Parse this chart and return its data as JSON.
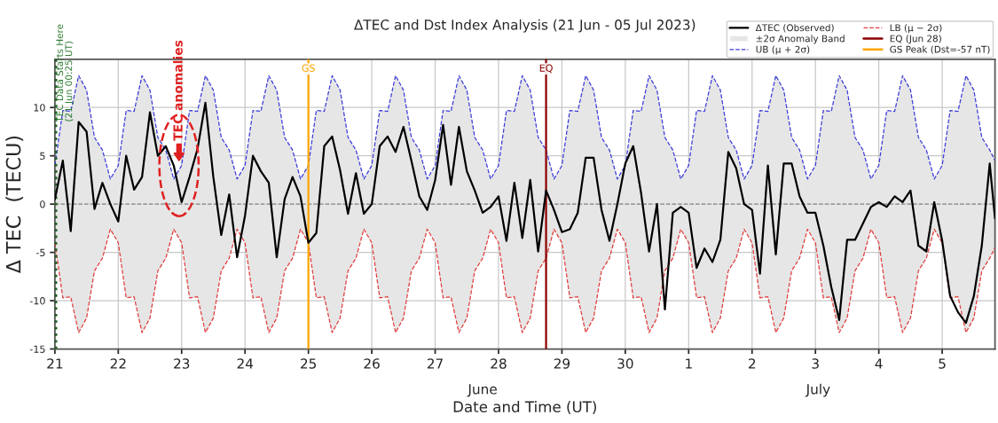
{
  "chart_data": {
    "type": "line",
    "title": "ΔTEC and Dst Index Analysis (21 Jun - 05 Jul 2023)",
    "xlabel": "Date and Time (UT)",
    "ylabel": "Δ TEC  (TECU)",
    "x": [
      "2023-06-21T00:00",
      "2023-06-21T03:00",
      "2023-06-21T06:00",
      "2023-06-21T09:00",
      "2023-06-21T12:00",
      "2023-06-21T15:00",
      "2023-06-21T18:00",
      "2023-06-21T21:00",
      "2023-06-22T00:00",
      "2023-06-22T03:00",
      "2023-06-22T06:00",
      "2023-06-22T09:00",
      "2023-06-22T12:00",
      "2023-06-22T15:00",
      "2023-06-22T18:00",
      "2023-06-22T21:00",
      "2023-06-23T00:00",
      "2023-06-23T03:00",
      "2023-06-23T06:00",
      "2023-06-23T09:00",
      "2023-06-23T12:00",
      "2023-06-23T15:00",
      "2023-06-23T18:00",
      "2023-06-23T21:00",
      "2023-06-24T00:00",
      "2023-06-24T03:00",
      "2023-06-24T06:00",
      "2023-06-24T09:00",
      "2023-06-24T12:00",
      "2023-06-24T15:00",
      "2023-06-24T18:00",
      "2023-06-24T21:00",
      "2023-06-25T00:00",
      "2023-06-25T03:00",
      "2023-06-25T06:00",
      "2023-06-25T09:00",
      "2023-06-25T12:00",
      "2023-06-25T15:00",
      "2023-06-25T18:00",
      "2023-06-25T21:00",
      "2023-06-26T00:00",
      "2023-06-26T03:00",
      "2023-06-26T06:00",
      "2023-06-26T09:00",
      "2023-06-26T12:00",
      "2023-06-26T15:00",
      "2023-06-26T18:00",
      "2023-06-26T21:00",
      "2023-06-27T00:00",
      "2023-06-27T03:00",
      "2023-06-27T06:00",
      "2023-06-27T09:00",
      "2023-06-27T12:00",
      "2023-06-27T15:00",
      "2023-06-27T18:00",
      "2023-06-27T21:00",
      "2023-06-28T00:00",
      "2023-06-28T03:00",
      "2023-06-28T06:00",
      "2023-06-28T09:00",
      "2023-06-28T12:00",
      "2023-06-28T15:00",
      "2023-06-28T18:00",
      "2023-06-28T21:00",
      "2023-06-29T00:00",
      "2023-06-29T03:00",
      "2023-06-29T06:00",
      "2023-06-29T09:00",
      "2023-06-29T12:00",
      "2023-06-29T15:00",
      "2023-06-29T18:00",
      "2023-06-29T21:00",
      "2023-06-30T00:00",
      "2023-06-30T03:00",
      "2023-06-30T06:00",
      "2023-06-30T09:00",
      "2023-06-30T12:00",
      "2023-06-30T15:00",
      "2023-06-30T18:00",
      "2023-06-30T21:00",
      "2023-07-01T00:00",
      "2023-07-01T03:00",
      "2023-07-01T06:00",
      "2023-07-01T09:00",
      "2023-07-01T12:00",
      "2023-07-01T15:00",
      "2023-07-01T18:00",
      "2023-07-01T21:00",
      "2023-07-02T00:00",
      "2023-07-02T03:00",
      "2023-07-02T06:00",
      "2023-07-02T09:00",
      "2023-07-02T12:00",
      "2023-07-02T15:00",
      "2023-07-02T18:00",
      "2023-07-02T21:00",
      "2023-07-03T00:00",
      "2023-07-03T03:00",
      "2023-07-03T06:00",
      "2023-07-03T09:00",
      "2023-07-03T12:00",
      "2023-07-03T15:00",
      "2023-07-03T18:00",
      "2023-07-03T21:00",
      "2023-07-04T00:00",
      "2023-07-04T03:00",
      "2023-07-04T06:00",
      "2023-07-04T09:00",
      "2023-07-04T12:00",
      "2023-07-04T15:00",
      "2023-07-04T18:00",
      "2023-07-04T21:00",
      "2023-07-05T00:00",
      "2023-07-05T03:00",
      "2023-07-05T06:00",
      "2023-07-05T09:00",
      "2023-07-05T12:00",
      "2023-07-05T15:00",
      "2023-07-05T18:00",
      "2023-07-05T20:00"
    ],
    "series": [
      {
        "name": "ΔTEC (Observed)",
        "color": "#000000",
        "values": [
          0.5,
          4.5,
          -2.8,
          8.5,
          7.5,
          -0.5,
          2.2,
          0.0,
          -1.8,
          5.0,
          1.5,
          2.8,
          9.5,
          5.0,
          6.0,
          4.0,
          0.2,
          2.8,
          5.7,
          10.5,
          2.8,
          -3.2,
          1.0,
          -5.5,
          -1.2,
          5.0,
          3.4,
          2.2,
          -5.5,
          0.5,
          2.8,
          0.8,
          -4.0,
          -3.0,
          6.0,
          7.0,
          3.5,
          -1.0,
          3.2,
          -1.0,
          0.0,
          6.0,
          7.0,
          5.4,
          8.0,
          4.5,
          0.8,
          -0.6,
          2.5,
          8.2,
          2.0,
          8.0,
          3.4,
          1.4,
          -0.9,
          -0.3,
          0.8,
          -3.8,
          2.2,
          -3.5,
          2.5,
          -4.9,
          1.4,
          -0.6,
          -2.9,
          -2.6,
          -0.9,
          4.8,
          4.8,
          -0.6,
          -3.8,
          0.0,
          4.2,
          6.0,
          1.1,
          -4.9,
          0.0,
          -10.9,
          -0.9,
          -0.3,
          -0.9,
          -6.6,
          -4.6,
          -6.0,
          -3.7,
          5.4,
          3.7,
          0.0,
          -0.6,
          -7.2,
          4.0,
          -5.2,
          4.2,
          4.2,
          0.8,
          -0.9,
          -0.9,
          -4.3,
          -8.6,
          -12.0,
          -3.7,
          -3.7,
          -2.0,
          -0.3,
          0.2,
          -0.3,
          0.8,
          0.2,
          1.4,
          -4.3,
          -4.9,
          0.2,
          -3.8,
          -9.5,
          -11.2,
          -12.3,
          -9.5,
          -4.3,
          4.2,
          -1.5
        ],
        "lower": [
          -4.0,
          -9.7,
          -9.6,
          -13.3,
          -11.8,
          -6.9,
          -5.6,
          -2.6,
          -4.0,
          -9.7,
          -9.6,
          -13.3,
          -11.8,
          -6.9,
          -5.6,
          -2.6,
          -4.0,
          -9.7,
          -9.6,
          -13.3,
          -11.8,
          -6.9,
          -5.6,
          -2.6,
          -4.0,
          -9.7,
          -9.6,
          -13.3,
          -11.8,
          -6.9,
          -5.6,
          -2.6,
          -4.0,
          -9.7,
          -9.6,
          -13.3,
          -11.8,
          -6.9,
          -5.6,
          -2.6,
          -4.0,
          -9.7,
          -9.6,
          -13.3,
          -11.8,
          -6.9,
          -5.6,
          -2.6,
          -4.0,
          -9.7,
          -9.6,
          -13.3,
          -11.8,
          -6.9,
          -5.6,
          -2.6,
          -4.0,
          -9.7,
          -9.6,
          -13.3,
          -11.8,
          -6.9,
          -5.6,
          -2.6,
          -4.0,
          -9.7,
          -9.6,
          -13.3,
          -11.8,
          -6.9,
          -5.6,
          -2.6,
          -4.0,
          -9.7,
          -9.6,
          -13.3,
          -11.8,
          -6.9,
          -5.6,
          -2.6,
          -4.0,
          -9.7,
          -9.6,
          -13.3,
          -11.8,
          -6.9,
          -5.6,
          -2.6,
          -4.0,
          -9.7,
          -9.6,
          -13.3,
          -11.8,
          -6.9,
          -5.6,
          -2.6,
          -4.0,
          -9.7,
          -9.6,
          -13.3,
          -11.8,
          -6.9,
          -5.6,
          -2.6,
          -4.0,
          -9.7,
          -9.6,
          -13.3,
          -11.8,
          -6.9,
          -5.6,
          -2.6,
          -4.0,
          -9.7,
          -9.6,
          -13.3,
          -11.8,
          -6.9,
          -5.6,
          -4.5
        ],
        "upper": [
          4.0,
          9.7,
          9.6,
          13.3,
          11.8,
          6.9,
          5.6,
          2.6,
          4.0,
          9.7,
          9.6,
          13.3,
          11.8,
          6.9,
          5.6,
          2.6,
          4.0,
          9.7,
          9.6,
          13.3,
          11.8,
          6.9,
          5.6,
          2.6,
          4.0,
          9.7,
          9.6,
          13.3,
          11.8,
          6.9,
          5.6,
          2.6,
          4.0,
          9.7,
          9.6,
          13.3,
          11.8,
          6.9,
          5.6,
          2.6,
          4.0,
          9.7,
          9.6,
          13.3,
          11.8,
          6.9,
          5.6,
          2.6,
          4.0,
          9.7,
          9.6,
          13.3,
          11.8,
          6.9,
          5.6,
          2.6,
          4.0,
          9.7,
          9.6,
          13.3,
          11.8,
          6.9,
          5.6,
          2.6,
          4.0,
          9.7,
          9.6,
          13.3,
          11.8,
          6.9,
          5.6,
          2.6,
          4.0,
          9.7,
          9.6,
          13.3,
          11.8,
          6.9,
          5.6,
          2.6,
          4.0,
          9.7,
          9.6,
          13.3,
          11.8,
          6.9,
          5.6,
          2.6,
          4.0,
          9.7,
          9.6,
          13.3,
          11.8,
          6.9,
          5.6,
          2.6,
          4.0,
          9.7,
          9.6,
          13.3,
          11.8,
          6.9,
          5.6,
          2.6,
          4.0,
          9.7,
          9.6,
          13.3,
          11.8,
          6.9,
          5.6,
          2.6,
          4.0,
          9.7,
          9.6,
          13.3,
          11.8,
          6.9,
          5.6,
          4.5
        ]
      },
      {
        "name": "UB (μ + 2σ)",
        "color": "#3b3bd9",
        "line_style": "dashed",
        "values": [
          4.0,
          9.7,
          9.6,
          13.3,
          11.8,
          6.9,
          5.6,
          2.6,
          4.0,
          9.7,
          9.6,
          13.3,
          11.8,
          6.9,
          5.6,
          2.6,
          4.0,
          9.7,
          9.6,
          13.3,
          11.8,
          6.9,
          5.6,
          2.6,
          4.0,
          9.7,
          9.6,
          13.3,
          11.8,
          6.9,
          5.6,
          2.6,
          4.0,
          9.7,
          9.6,
          13.3,
          11.8,
          6.9,
          5.6,
          2.6,
          4.0,
          9.7,
          9.6,
          13.3,
          11.8,
          6.9,
          5.6,
          2.6,
          4.0,
          9.7,
          9.6,
          13.3,
          11.8,
          6.9,
          5.6,
          2.6,
          4.0,
          9.7,
          9.6,
          13.3,
          11.8,
          6.9,
          5.6,
          2.6,
          4.0,
          9.7,
          9.6,
          13.3,
          11.8,
          6.9,
          5.6,
          2.6,
          4.0,
          9.7,
          9.6,
          13.3,
          11.8,
          6.9,
          5.6,
          2.6,
          4.0,
          9.7,
          9.6,
          13.3,
          11.8,
          6.9,
          5.6,
          2.6,
          4.0,
          9.7,
          9.6,
          13.3,
          11.8,
          6.9,
          5.6,
          2.6,
          4.0,
          9.7,
          9.6,
          13.3,
          11.8,
          6.9,
          5.6,
          2.6,
          4.0,
          9.7,
          9.6,
          13.3,
          11.8,
          6.9,
          5.6,
          2.6,
          4.0,
          9.7,
          9.6,
          13.3,
          11.8,
          6.9,
          5.6,
          4.5
        ]
      },
      {
        "name": "LB (μ − 2σ)",
        "color": "#e03c3c",
        "line_style": "dashed",
        "values": [
          -4.0,
          -9.7,
          -9.6,
          -13.3,
          -11.8,
          -6.9,
          -5.6,
          -2.6,
          -4.0,
          -9.7,
          -9.6,
          -13.3,
          -11.8,
          -6.9,
          -5.6,
          -2.6,
          -4.0,
          -9.7,
          -9.6,
          -13.3,
          -11.8,
          -6.9,
          -5.6,
          -2.6,
          -4.0,
          -9.7,
          -9.6,
          -13.3,
          -11.8,
          -6.9,
          -5.6,
          -2.6,
          -4.0,
          -9.7,
          -9.6,
          -13.3,
          -11.8,
          -6.9,
          -5.6,
          -2.6,
          -4.0,
          -9.7,
          -9.6,
          -13.3,
          -11.8,
          -6.9,
          -5.6,
          -2.6,
          -4.0,
          -9.7,
          -9.6,
          -13.3,
          -11.8,
          -6.9,
          -5.6,
          -2.6,
          -4.0,
          -9.7,
          -9.6,
          -13.3,
          -11.8,
          -6.9,
          -5.6,
          -2.6,
          -4.0,
          -9.7,
          -9.6,
          -13.3,
          -11.8,
          -6.9,
          -5.6,
          -2.6,
          -4.0,
          -9.7,
          -9.6,
          -13.3,
          -11.8,
          -6.9,
          -5.6,
          -2.6,
          -4.0,
          -9.7,
          -9.6,
          -13.3,
          -11.8,
          -6.9,
          -5.6,
          -2.6,
          -4.0,
          -9.7,
          -9.6,
          -13.3,
          -11.8,
          -6.9,
          -5.6,
          -2.6,
          -4.0,
          -9.7,
          -9.6,
          -13.3,
          -11.8,
          -6.9,
          -5.6,
          -2.6,
          -4.0,
          -9.7,
          -9.6,
          -13.3,
          -11.8,
          -6.9,
          -5.6,
          -2.6,
          -4.0,
          -9.7,
          -9.6,
          -13.3,
          -11.8,
          -6.9,
          -5.6,
          -4.5
        ]
      }
    ],
    "ref_lines": [
      {
        "axis": "y",
        "value": 0,
        "color": "#808080",
        "line_style": "dashed"
      },
      {
        "axis": "x",
        "value": "2023-06-21T00:25",
        "color": "#1b5e20",
        "line_style": "dotted"
      },
      {
        "axis": "x",
        "value": "2023-06-28T18:00",
        "label": "EQ (Jun 28)",
        "color": "#8b0000"
      },
      {
        "axis": "x",
        "value": "2023-06-25T00:00",
        "label": "GS Peak (Dst=-57 nT)",
        "color": "#ffa500"
      }
    ],
    "annotations": [
      {
        "text": "TEC anomalies",
        "x": "2023-06-22T23:00",
        "y": 4.5
      },
      {
        "text": "TEC Data Starts Here\n(21 Jun 00:25 UT)",
        "x": "2023-06-21T00:25",
        "y": 8.5
      },
      {
        "text": "GS",
        "x": "2023-06-25T00:00",
        "y": 14
      },
      {
        "text": "EQ",
        "x": "2023-06-28T18:00",
        "y": 14
      },
      "±2σ Anomaly Band",
      "June",
      "July"
    ],
    "xlim": [
      "2023-06-21T00:00",
      "2023-07-05T20:00"
    ],
    "xticks": [
      {
        "value": "2023-06-21",
        "label": "21"
      },
      {
        "value": "2023-06-22",
        "label": "22"
      },
      {
        "value": "2023-06-23",
        "label": "23"
      },
      {
        "value": "2023-06-24",
        "label": "24"
      },
      {
        "value": "2023-06-25",
        "label": "25"
      },
      {
        "value": "2023-06-26",
        "label": "26"
      },
      {
        "value": "2023-06-27",
        "label": "27"
      },
      {
        "value": "2023-06-28",
        "label": "28"
      },
      {
        "value": "2023-06-29",
        "label": "29"
      },
      {
        "value": "2023-06-30",
        "label": "30"
      },
      {
        "value": "2023-07-01",
        "label": "1"
      },
      {
        "value": "2023-07-02",
        "label": "2"
      },
      {
        "value": "2023-07-03",
        "label": "3"
      },
      {
        "value": "2023-07-04",
        "label": "4"
      },
      {
        "value": "2023-07-05",
        "label": "5"
      }
    ],
    "ylim": [
      -15,
      15
    ],
    "yticks": [
      -15,
      -10,
      -5,
      0,
      5,
      10
    ],
    "grid": true,
    "legend": "top right"
  }
}
